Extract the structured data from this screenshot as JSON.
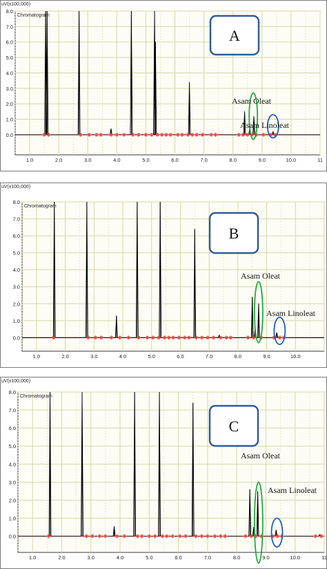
{
  "chart_data": [
    {
      "type": "line",
      "panel_label": "A",
      "ylabel": "uV(x100,000)",
      "subtitle": "Chromatogram",
      "xlim": [
        0.5,
        11.0
      ],
      "ylim": [
        -1.3,
        8.0
      ],
      "x_ticks": [
        "1.0",
        "2.0",
        "3.0",
        "4.0",
        "5.0",
        "6.0",
        "7.0",
        "8.0",
        "9.0",
        "10.0",
        "11"
      ],
      "y_ticks": [
        "0.0",
        "1.0",
        "2.0",
        "3.0",
        "4.0",
        "5.0",
        "6.0",
        "7.0",
        "8.0"
      ],
      "peaks": [
        {
          "x": 1.55,
          "height": 8.0
        },
        {
          "x": 1.6,
          "height": 8.0
        },
        {
          "x": 2.7,
          "height": 8.0
        },
        {
          "x": 3.8,
          "height": 0.4
        },
        {
          "x": 4.5,
          "height": 8.0
        },
        {
          "x": 5.3,
          "height": 8.0
        },
        {
          "x": 5.33,
          "height": 6.0
        },
        {
          "x": 6.5,
          "height": 3.4
        },
        {
          "x": 8.4,
          "height": 1.5
        },
        {
          "x": 8.58,
          "height": 0.5
        },
        {
          "x": 8.72,
          "height": 1.2
        },
        {
          "x": 9.38,
          "height": 0.2
        }
      ],
      "marker_x": [
        1.5,
        1.65,
        2.75,
        3.05,
        3.3,
        3.45,
        3.8,
        4.0,
        4.25,
        4.55,
        4.75,
        5.0,
        5.2,
        5.4,
        5.55,
        5.7,
        5.85,
        6.1,
        6.25,
        6.45,
        6.6,
        6.75,
        6.95,
        7.25,
        7.4,
        8.2,
        8.35,
        8.5,
        8.65,
        8.8,
        9.05,
        9.3,
        9.45
      ],
      "annotations": [
        {
          "text": "Asam Oleat",
          "series": "Oleat"
        },
        {
          "text": "Asam Linoleat",
          "series": "Linoleat"
        }
      ],
      "highlights": [
        {
          "label": "Asam Oleat",
          "x": 8.7,
          "y_min": -0.3,
          "y_max": 2.7,
          "color": "#1faa3c"
        },
        {
          "label": "Asam Linoleat",
          "x": 9.38,
          "y_min": -0.2,
          "y_max": 1.3,
          "color": "#1f5bc4"
        }
      ],
      "colors": {
        "trace": "#000000",
        "baseline": "#cc0000",
        "marker": "#e8403a",
        "grid": "#d8d6a6"
      }
    },
    {
      "type": "line",
      "panel_label": "B",
      "ylabel": "uV(x100,000)",
      "subtitle": "Chromatogram",
      "xlim": [
        0.5,
        11.0
      ],
      "ylim": [
        -0.8,
        8.0
      ],
      "x_ticks": [
        "1.0",
        "2.0",
        "3.0",
        "4.0",
        "5.0",
        "6.0",
        "7.0",
        "8.0",
        "9.0",
        "10.0"
      ],
      "y_ticks": [
        "0.0",
        "1.0",
        "2.0",
        "3.0",
        "4.0",
        "5.0",
        "6.0",
        "7.0",
        "8.0"
      ],
      "peaks": [
        {
          "x": 1.62,
          "height": 8.0
        },
        {
          "x": 2.75,
          "height": 8.0
        },
        {
          "x": 3.78,
          "height": 1.3
        },
        {
          "x": 4.5,
          "height": 8.0
        },
        {
          "x": 5.3,
          "height": 8.0
        },
        {
          "x": 6.5,
          "height": 6.4
        },
        {
          "x": 7.35,
          "height": 0.15
        },
        {
          "x": 8.5,
          "height": 2.4
        },
        {
          "x": 8.6,
          "height": 0.6
        },
        {
          "x": 8.72,
          "height": 2.0
        },
        {
          "x": 9.35,
          "height": 0.3
        }
      ],
      "marker_x": [
        1.6,
        2.8,
        3.05,
        3.25,
        3.6,
        3.9,
        4.2,
        4.55,
        4.85,
        5.05,
        5.25,
        5.45,
        5.6,
        5.75,
        5.95,
        6.15,
        6.3,
        6.55,
        6.75,
        6.95,
        7.15,
        7.4,
        7.6,
        7.75,
        8.35,
        8.55,
        8.8,
        9.25,
        9.45,
        9.6
      ],
      "annotations": [
        {
          "text": "Asam Oleat",
          "series": "Oleat"
        },
        {
          "text": "Asam Linoleat",
          "series": "Linoleat"
        }
      ],
      "highlights": [
        {
          "label": "Asam Oleat",
          "x": 8.72,
          "y_min": -0.3,
          "y_max": 3.3,
          "color": "#1faa3c"
        },
        {
          "label": "Asam Linoleat",
          "x": 9.45,
          "y_min": -0.4,
          "y_max": 1.2,
          "color": "#1f5bc4"
        }
      ],
      "colors": {
        "trace": "#000000",
        "baseline": "#cc0000",
        "marker": "#e8403a",
        "grid": "#d8d6a6"
      }
    },
    {
      "type": "line",
      "panel_label": "C",
      "ylabel": "uV(x100,000)",
      "subtitle": "Chromatogram",
      "xlim": [
        0.5,
        11.0
      ],
      "ylim": [
        -0.9,
        8.0
      ],
      "x_ticks": [
        "1.0",
        "2.0",
        "3.0",
        "4.0",
        "5.0",
        "6.0",
        "7.0",
        "8.0",
        "9.0",
        "10.0",
        "11"
      ],
      "y_ticks": [
        "0.0",
        "1.0",
        "2.0",
        "3.0",
        "4.0",
        "5.0",
        "6.0",
        "7.0",
        "8.0"
      ],
      "peaks": [
        {
          "x": 1.6,
          "height": 8.0
        },
        {
          "x": 2.7,
          "height": 8.0
        },
        {
          "x": 3.8,
          "height": 0.55
        },
        {
          "x": 4.5,
          "height": 8.0
        },
        {
          "x": 5.35,
          "height": 8.0
        },
        {
          "x": 6.5,
          "height": 7.4
        },
        {
          "x": 8.45,
          "height": 2.6
        },
        {
          "x": 8.58,
          "height": 0.5
        },
        {
          "x": 8.72,
          "height": 2.5
        },
        {
          "x": 9.35,
          "height": 0.35
        },
        {
          "x": 10.85,
          "height": 0.1
        }
      ],
      "marker_x": [
        1.55,
        2.85,
        3.05,
        3.3,
        3.5,
        3.9,
        4.15,
        4.6,
        4.75,
        5.0,
        5.2,
        5.45,
        5.6,
        5.8,
        6.05,
        6.25,
        6.6,
        6.8,
        7.0,
        7.25,
        7.45,
        7.6,
        8.3,
        8.5,
        8.65,
        8.85,
        9.25,
        9.4,
        9.55,
        10.7,
        10.9
      ],
      "annotations": [
        {
          "text": "Asam Oleat",
          "series": "Oleat"
        },
        {
          "text": "Asam Linoleat",
          "series": "Linoleat"
        }
      ],
      "highlights": [
        {
          "label": "Asam Oleat",
          "x": 8.75,
          "y_min": -1.5,
          "y_max": 3.0,
          "color": "#1faa3c"
        },
        {
          "label": "Asam Linoleat",
          "x": 9.38,
          "y_min": -0.6,
          "y_max": 1.0,
          "color": "#1f5bc4"
        }
      ],
      "colors": {
        "trace": "#000000",
        "baseline": "#cc0000",
        "marker": "#e8403a",
        "grid": "#d8d6a6"
      }
    }
  ]
}
